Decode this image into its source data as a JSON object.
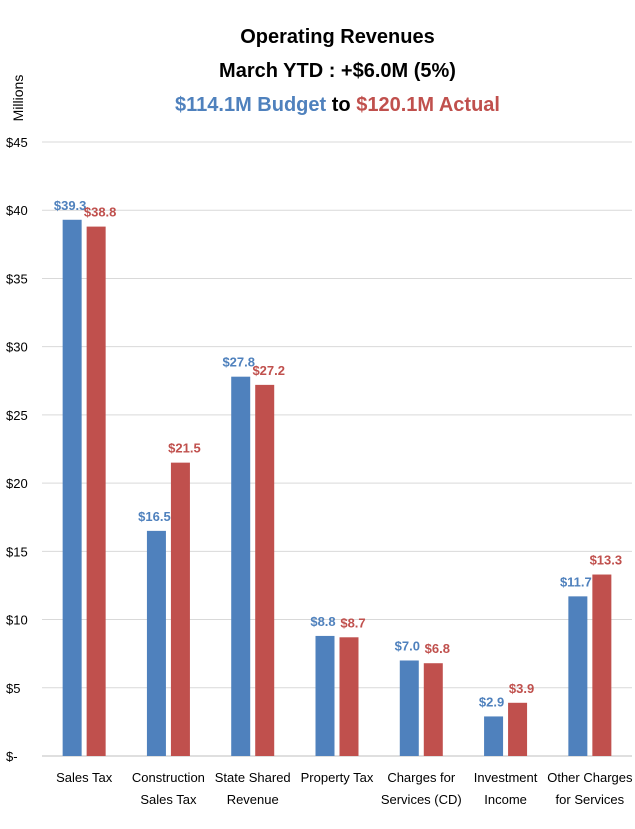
{
  "chart_data": {
    "type": "bar",
    "title": "Operating Revenues",
    "subtitle": "March YTD : +$6.0M (5%)",
    "title_line3": {
      "budget_text": "$114.1M Budget",
      "connector": "to",
      "actual_text": "$120.1M Actual"
    },
    "ylabel": "Millions",
    "xlabel": "",
    "ylim": [
      0,
      45
    ],
    "y_ticks": [
      {
        "value": 0,
        "label": "$-"
      },
      {
        "value": 5,
        "label": "$5"
      },
      {
        "value": 10,
        "label": "$10"
      },
      {
        "value": 15,
        "label": "$15"
      },
      {
        "value": 20,
        "label": "$20"
      },
      {
        "value": 25,
        "label": "$25"
      },
      {
        "value": 30,
        "label": "$30"
      },
      {
        "value": 35,
        "label": "$35"
      },
      {
        "value": 40,
        "label": "$40"
      },
      {
        "value": 45,
        "label": "$45"
      }
    ],
    "grid": true,
    "legend": "none",
    "categories": [
      [
        "Sales Tax"
      ],
      [
        "Construction",
        "Sales Tax"
      ],
      [
        "State Shared",
        "Revenue"
      ],
      [
        "Property Tax"
      ],
      [
        "Charges for",
        "Services (CD)"
      ],
      [
        "Investment",
        "Income"
      ],
      [
        "Other Charges",
        "for Services"
      ]
    ],
    "series": [
      {
        "key": "budget",
        "color": "#4F81BD",
        "values": [
          39.3,
          16.5,
          27.8,
          8.8,
          7.0,
          2.9,
          11.7
        ],
        "labels": [
          "$39.3",
          "$16.5",
          "$27.8",
          "$8.8",
          "$7.0",
          "$2.9",
          "$11.7"
        ]
      },
      {
        "key": "actual",
        "color": "#C0504D",
        "values": [
          38.8,
          21.5,
          27.2,
          8.7,
          6.8,
          3.9,
          13.3
        ],
        "labels": [
          "$38.8",
          "$21.5",
          "$27.2",
          "$8.7",
          "$6.8",
          "$3.9",
          "$13.3"
        ]
      }
    ],
    "colors": {
      "budget": "#4F81BD",
      "actual": "#C0504D",
      "grid": "#D9D9D9",
      "axis": "#BFBFBF"
    }
  }
}
